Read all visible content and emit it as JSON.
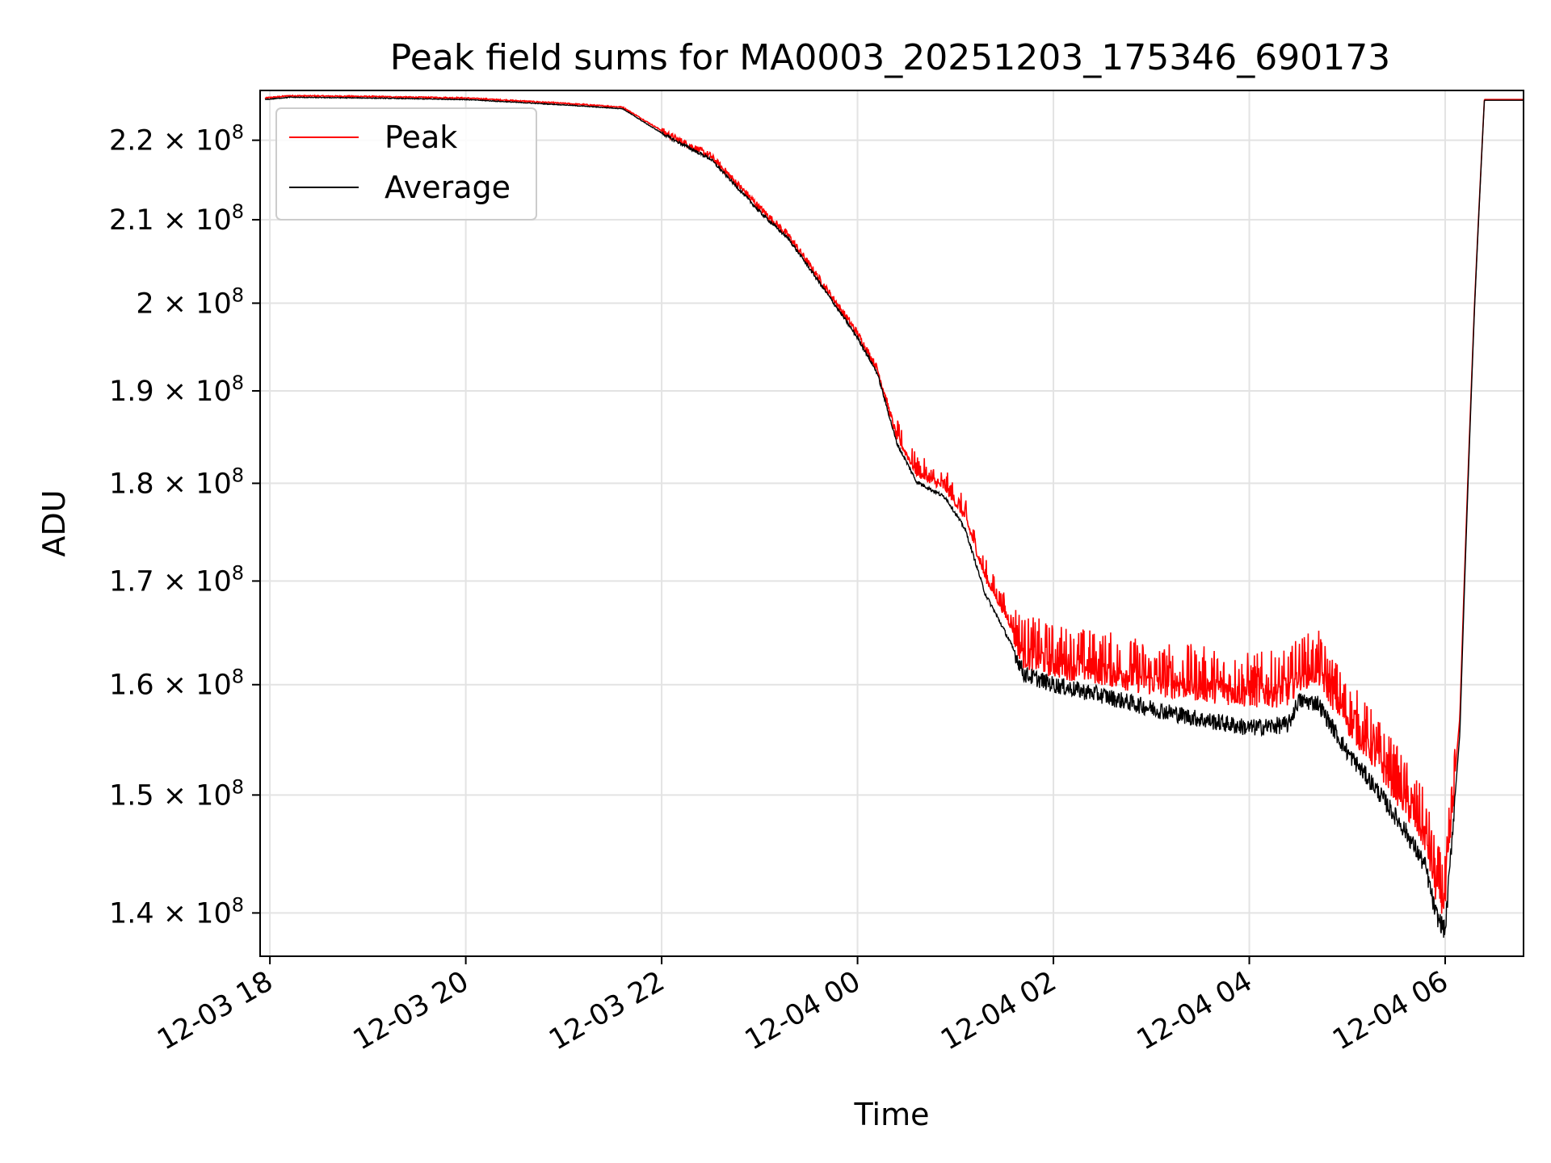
{
  "chart_data": {
    "type": "line",
    "title": "Peak field sums for MA0003_20251203_175346_690173",
    "xlabel": "Time",
    "ylabel": "ADU",
    "yscale": "log",
    "xlim_hours": [
      -0.1,
      12.8
    ],
    "ylim": [
      136500000,
      226500000
    ],
    "grid": true,
    "legend_position": "top-left",
    "x_tick_labels": [
      "12-03 18",
      "12-03 20",
      "12-03 22",
      "12-04 00",
      "12-04 02",
      "12-04 04",
      "12-04 06"
    ],
    "x_tick_hours": [
      0,
      2,
      4,
      6,
      8,
      10,
      12
    ],
    "y_ticks": [
      {
        "value": 140000000,
        "mantissa": "1.4",
        "exponent": "8"
      },
      {
        "value": 150000000,
        "mantissa": "1.5",
        "exponent": "8"
      },
      {
        "value": 160000000,
        "mantissa": "1.6",
        "exponent": "8"
      },
      {
        "value": 170000000,
        "mantissa": "1.7",
        "exponent": "8"
      },
      {
        "value": 180000000,
        "mantissa": "1.8",
        "exponent": "8"
      },
      {
        "value": 190000000,
        "mantissa": "1.9",
        "exponent": "8"
      },
      {
        "value": 200000000,
        "mantissa": "2",
        "exponent": "8"
      },
      {
        "value": 210000000,
        "mantissa": "2.1",
        "exponent": "8"
      },
      {
        "value": 220000000,
        "mantissa": "2.2",
        "exponent": "8"
      }
    ],
    "series": [
      {
        "name": "Peak",
        "color": "#ff0000",
        "x_hours": [
          -0.05,
          0.2,
          1.0,
          2.0,
          3.0,
          3.6,
          3.9,
          4.1,
          4.5,
          5.0,
          5.3,
          5.6,
          6.0,
          6.2,
          6.4,
          6.6,
          6.9,
          7.1,
          7.3,
          7.55,
          7.7,
          8.0,
          8.5,
          9.0,
          9.5,
          10.0,
          10.4,
          10.5,
          10.7,
          11.0,
          11.3,
          11.6,
          11.8,
          11.9,
          12.0,
          12.05,
          12.15,
          12.3,
          12.4,
          12.6,
          12.8
        ],
        "values": [
          225500000,
          225800000,
          225700000,
          225500000,
          224800000,
          224300000,
          222000000,
          220500000,
          218000000,
          211500000,
          208000000,
          203000000,
          196500000,
          192500000,
          185000000,
          181200000,
          179500000,
          176500000,
          170500000,
          166000000,
          163000000,
          162200000,
          161500000,
          160500000,
          160000000,
          159400000,
          159500000,
          161000000,
          161500000,
          157000000,
          153500000,
          149500000,
          146500000,
          142500000,
          141000000,
          146500000,
          157000000,
          200000000,
          225300000,
          225300000,
          225300000
        ]
      },
      {
        "name": "Average",
        "color": "#000000",
        "x_hours": [
          -0.05,
          0.2,
          1.0,
          2.0,
          3.0,
          3.6,
          3.9,
          4.1,
          4.5,
          5.0,
          5.3,
          5.6,
          6.0,
          6.2,
          6.4,
          6.6,
          6.9,
          7.1,
          7.3,
          7.55,
          7.7,
          8.0,
          8.5,
          9.0,
          9.5,
          10.0,
          10.4,
          10.5,
          10.7,
          11.0,
          11.3,
          11.6,
          11.8,
          11.9,
          12.0,
          12.05,
          12.15,
          12.3,
          12.4,
          12.6,
          12.8
        ],
        "values": [
          225300000,
          225600000,
          225500000,
          225300000,
          224600000,
          224100000,
          221700000,
          220200000,
          217600000,
          211000000,
          207600000,
          202600000,
          196000000,
          192000000,
          184300000,
          180200000,
          178500000,
          175200000,
          168800000,
          164200000,
          161000000,
          160000000,
          159000000,
          157800000,
          156800000,
          156000000,
          156300000,
          158500000,
          158300000,
          153800000,
          150500000,
          146800000,
          143800000,
          140000000,
          138500000,
          144000000,
          155500000,
          199500000,
          225200000,
          225200000,
          225200000
        ]
      }
    ]
  }
}
